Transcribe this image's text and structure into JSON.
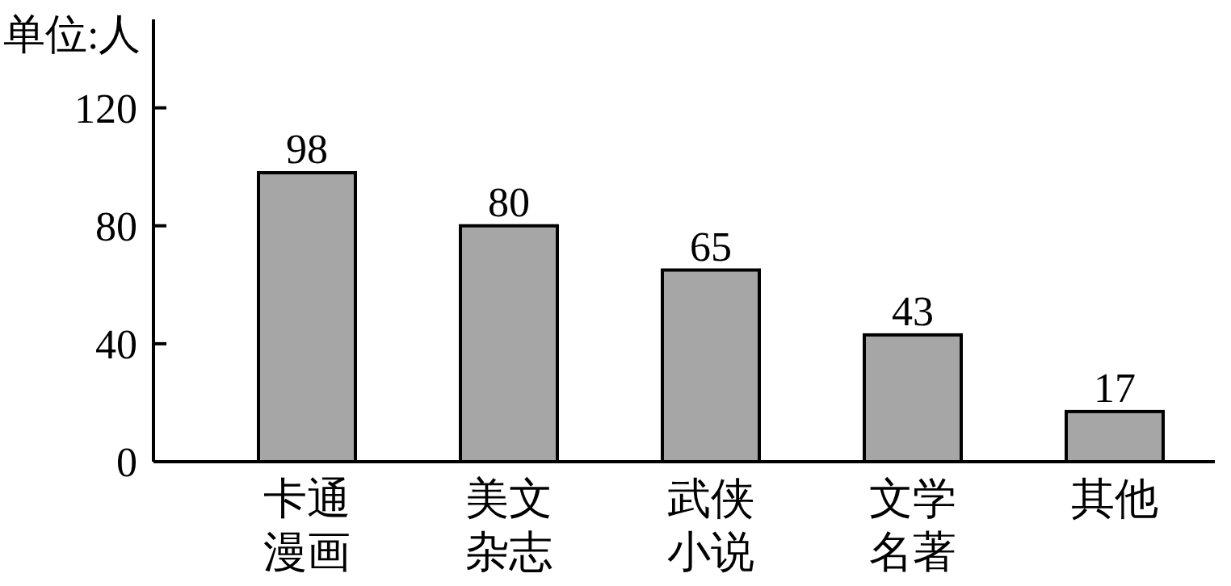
{
  "chart_data": {
    "type": "bar",
    "ylabel": "单位:人",
    "categories": [
      "卡通漫画",
      "美文杂志",
      "武侠小说",
      "文学名著",
      "其他"
    ],
    "values": [
      98,
      80,
      65,
      43,
      17
    ],
    "color": "#a6a6a6",
    "ylim": [
      0,
      150
    ],
    "yticks": [
      0,
      40,
      80,
      120
    ],
    "data_labels": true
  }
}
